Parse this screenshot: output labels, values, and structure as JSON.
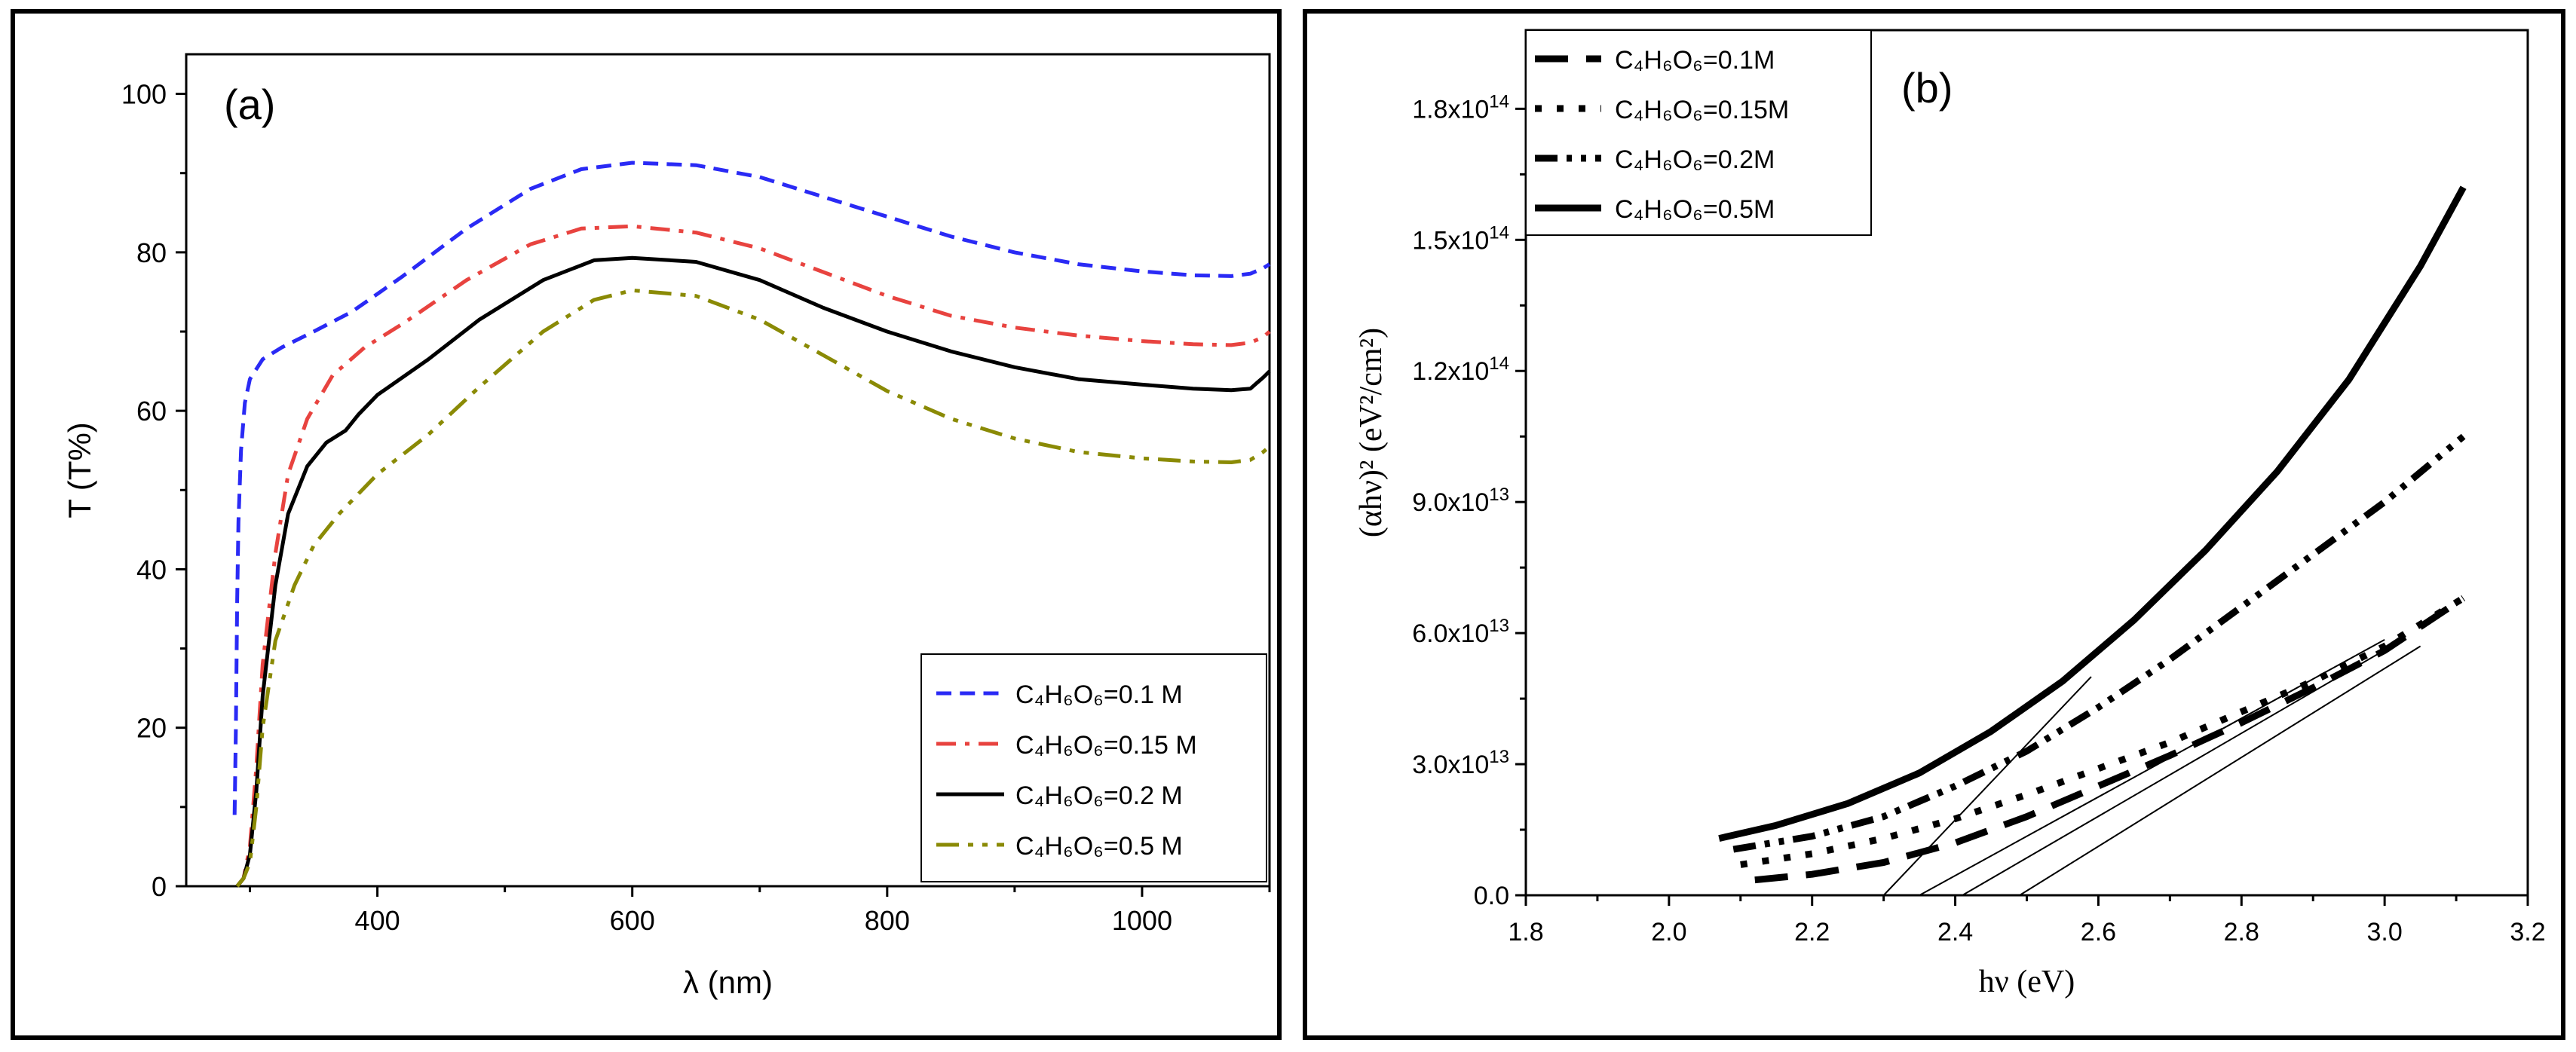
{
  "chart_data": [
    {
      "panel_label": "(a)",
      "type": "line",
      "xlabel": "λ (nm)",
      "ylabel": "T (T%)",
      "xlim": [
        250,
        1100
      ],
      "ylim": [
        0,
        105
      ],
      "xticks": [
        400,
        600,
        800,
        1000
      ],
      "yticks": [
        0,
        20,
        40,
        60,
        80,
        100
      ],
      "legend_position": "bottom-right",
      "series": [
        {
          "name": "0.1 M",
          "label": "C₄H₆O₆=0.1 M",
          "color": "#2a2af5",
          "dash": "dash",
          "x": [
            288,
            289,
            290,
            291,
            293,
            296,
            300,
            310,
            325,
            350,
            380,
            420,
            470,
            520,
            560,
            600,
            650,
            700,
            750,
            800,
            850,
            900,
            950,
            1000,
            1040,
            1070,
            1085,
            1095,
            1100
          ],
          "y": [
            9,
            20,
            36,
            46,
            55,
            61,
            64,
            66.5,
            68,
            70,
            72.5,
            77,
            83,
            88,
            90.5,
            91.3,
            91,
            89.5,
            87,
            84.5,
            82,
            80,
            78.5,
            77.6,
            77.1,
            77,
            77.3,
            78,
            78.5
          ]
        },
        {
          "name": "0.15 M",
          "label": "C₄H₆O₆=0.15 M",
          "color": "#e8433f",
          "dash": "dashdot",
          "x": [
            290,
            295,
            300,
            305,
            310,
            320,
            330,
            345,
            365,
            390,
            420,
            470,
            520,
            560,
            600,
            650,
            700,
            750,
            800,
            850,
            900,
            950,
            1000,
            1040,
            1070,
            1085,
            1095,
            1100
          ],
          "y": [
            0,
            1,
            5,
            15,
            28,
            42,
            52,
            59,
            64.5,
            68,
            71,
            76.5,
            81,
            83,
            83.3,
            82.5,
            80.5,
            77.5,
            74.5,
            72,
            70.5,
            69.5,
            68.8,
            68.4,
            68.3,
            68.6,
            69.3,
            70
          ]
        },
        {
          "name": "0.2 M",
          "label": "C₄H₆O₆=0.2 M",
          "color": "#000000",
          "dash": "solid",
          "x": [
            290,
            295,
            300,
            305,
            310,
            320,
            330,
            345,
            360,
            375,
            385,
            400,
            440,
            480,
            530,
            570,
            600,
            650,
            700,
            750,
            800,
            850,
            900,
            950,
            1000,
            1040,
            1070,
            1085,
            1090,
            1095,
            1100
          ],
          "y": [
            0,
            1,
            4,
            12,
            24,
            38,
            47,
            53,
            56,
            57.5,
            59.5,
            62,
            66.5,
            71.5,
            76.5,
            79,
            79.3,
            78.8,
            76.5,
            73,
            70,
            67.5,
            65.5,
            64,
            63.3,
            62.8,
            62.6,
            62.8,
            63.5,
            64.2,
            65
          ]
        },
        {
          "name": "0.5 M",
          "label": "C₄H₆O₆=0.5 M",
          "color": "#8a8a05",
          "dash": "dashdotdot",
          "x": [
            290,
            295,
            300,
            305,
            310,
            320,
            335,
            350,
            370,
            400,
            440,
            480,
            530,
            570,
            600,
            650,
            700,
            750,
            800,
            850,
            900,
            950,
            1000,
            1040,
            1070,
            1085,
            1095,
            1100
          ],
          "y": [
            0,
            1,
            3,
            10,
            20,
            31,
            38,
            43,
            47,
            52,
            57,
            63,
            70,
            74,
            75.2,
            74.5,
            71.5,
            67,
            62.5,
            59,
            56.5,
            54.8,
            54,
            53.6,
            53.5,
            53.8,
            54.8,
            55.5
          ]
        }
      ]
    },
    {
      "panel_label": "(b)",
      "type": "line",
      "xlabel": "hν (eV)",
      "ylabel": "(αhν)² (eV²/cm²)",
      "xlim": [
        1.8,
        3.2
      ],
      "ylim": [
        0,
        198000000000000.0
      ],
      "xticks": [
        1.8,
        2.0,
        2.2,
        2.4,
        2.6,
        2.8,
        3.0,
        3.2
      ],
      "xtick_labels": [
        "1.8",
        "2.0",
        "2.2",
        "2.4",
        "2.6",
        "2.8",
        "3.0",
        "3.2"
      ],
      "yticks": [
        0,
        30000000000000.0,
        60000000000000.0,
        90000000000000.0,
        120000000000000.0,
        150000000000000.0,
        180000000000000.0
      ],
      "ytick_labels": [
        {
          "m": "0.0",
          "e": ""
        },
        {
          "m": "3.0x10",
          "e": "13"
        },
        {
          "m": "6.0x10",
          "e": "13"
        },
        {
          "m": "9.0x10",
          "e": "13"
        },
        {
          "m": "1.2x10",
          "e": "14"
        },
        {
          "m": "1.5x10",
          "e": "14"
        },
        {
          "m": "1.8x10",
          "e": "14"
        }
      ],
      "legend_position": "top-left",
      "series": [
        {
          "name": "0.1M",
          "label": "C₄H₆O₆=0.1M",
          "color": "#000000",
          "dash": "longdash",
          "x": [
            2.12,
            2.2,
            2.3,
            2.4,
            2.5,
            2.6,
            2.7,
            2.8,
            2.9,
            3.0,
            3.11
          ],
          "y": [
            3500000000000.0,
            4800000000000.0,
            7500000000000.0,
            12000000000000.0,
            18000000000000.0,
            25000000000000.0,
            32000000000000.0,
            39500000000000.0,
            47500000000000.0,
            56000000000000.0,
            68000000000000.0
          ]
        },
        {
          "name": "0.15M",
          "label": "C₄H₆O₆=0.15M",
          "color": "#000000",
          "dash": "dot",
          "x": [
            2.1,
            2.2,
            2.3,
            2.4,
            2.5,
            2.6,
            2.7,
            2.8,
            2.9,
            3.0,
            3.11
          ],
          "y": [
            7000000000000.0,
            9500000000000.0,
            13000000000000.0,
            17500000000000.0,
            23000000000000.0,
            29000000000000.0,
            35000000000000.0,
            42000000000000.0,
            49000000000000.0,
            57000000000000.0,
            68000000000000.0
          ]
        },
        {
          "name": "0.2M",
          "label": "C₄H₆O₆=0.2M",
          "color": "#000000",
          "dash": "dashdotdot",
          "x": [
            2.09,
            2.2,
            2.3,
            2.4,
            2.5,
            2.6,
            2.7,
            2.8,
            2.9,
            3.0,
            3.11
          ],
          "y": [
            10500000000000.0,
            13500000000000.0,
            18000000000000.0,
            25000000000000.0,
            33000000000000.0,
            43000000000000.0,
            54000000000000.0,
            66000000000000.0,
            78000000000000.0,
            90000000000000.0,
            105000000000000.0
          ]
        },
        {
          "name": "0.5M",
          "label": "C₄H₆O₆=0.5M",
          "color": "#000000",
          "dash": "solid",
          "x": [
            2.07,
            2.15,
            2.25,
            2.35,
            2.45,
            2.55,
            2.65,
            2.75,
            2.85,
            2.95,
            3.05,
            3.11
          ],
          "y": [
            13000000000000.0,
            16000000000000.0,
            21000000000000.0,
            28000000000000.0,
            37500000000000.0,
            49000000000000.0,
            63000000000000.0,
            79000000000000.0,
            97000000000000.0,
            118000000000000.0,
            144000000000000.0,
            162000000000000.0
          ]
        }
      ],
      "tangent_lines": [
        {
          "x1": 2.3,
          "y1": 0,
          "x2": 2.59,
          "y2": 50000000000000.0
        },
        {
          "x1": 2.35,
          "y1": 0,
          "x2": 3.0,
          "y2": 58500000000000.0
        },
        {
          "x1": 2.41,
          "y1": 0,
          "x2": 3.02,
          "y2": 58000000000000.0
        },
        {
          "x1": 2.49,
          "y1": 0,
          "x2": 3.05,
          "y2": 57000000000000.0
        }
      ]
    }
  ]
}
